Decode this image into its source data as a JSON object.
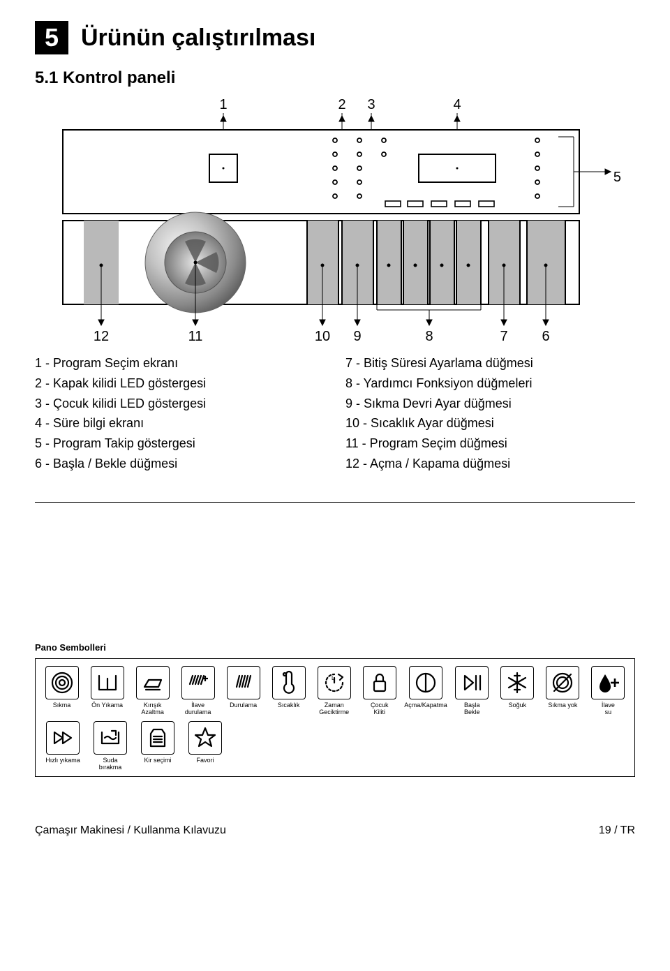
{
  "chapter": {
    "num": "5",
    "title": "Ürünün çalıştırılması"
  },
  "section": {
    "title": "5.1 Kontrol paneli"
  },
  "callouts": {
    "top": [
      "1",
      "2",
      "3",
      "4",
      "5"
    ],
    "bottom": [
      "12",
      "11",
      "10",
      "9",
      "8",
      "7",
      "6"
    ]
  },
  "legend": {
    "left": [
      "1 - Program Seçim ekranı",
      "2 - Kapak kilidi LED göstergesi",
      "3 - Çocuk kilidi LED göstergesi",
      "4 - Süre bilgi ekranı",
      "5 - Program Takip göstergesi",
      "6 - Başla / Bekle düğmesi"
    ],
    "right": [
      "7 - Bitiş Süresi Ayarlama düğmesi",
      "8 - Yardımcı Fonksiyon düğmeleri",
      "9 - Sıkma Devri Ayar düğmesi",
      "10 - Sıcaklık Ayar düğmesi",
      "11 - Program Seçim düğmesi",
      "12 - Açma / Kapama düğmesi"
    ]
  },
  "symbols": {
    "title": "Pano Sembolleri",
    "row1": [
      {
        "id": "spin-icon",
        "label": "Sıkma"
      },
      {
        "id": "prewash-icon",
        "label": "Ön Yıkama"
      },
      {
        "id": "anticrease-icon",
        "label": "Kırışık\nAzaltma"
      },
      {
        "id": "extra-rinse-icon",
        "label": "İlave\ndurulama"
      },
      {
        "id": "rinse-icon",
        "label": "Durulama"
      },
      {
        "id": "temperature-icon",
        "label": "Sıcaklık"
      },
      {
        "id": "time-delay-icon",
        "label": "Zaman\nGeciktirme"
      },
      {
        "id": "child-lock-icon",
        "label": "Çocuk\nKiliti"
      },
      {
        "id": "power-icon",
        "label": "Açma/Kapatma"
      },
      {
        "id": "start-pause-icon",
        "label": "Başla\nBekle"
      },
      {
        "id": "cold-icon",
        "label": "Soğuk"
      },
      {
        "id": "no-spin-icon",
        "label": "Sıkma yok"
      },
      {
        "id": "extra-water-icon",
        "label": "İlave\nsu"
      }
    ],
    "row2": [
      {
        "id": "fast-wash-icon",
        "label": "Hızlı yıkama"
      },
      {
        "id": "rinse-hold-icon",
        "label": "Suda\nbırakma"
      },
      {
        "id": "soil-level-icon",
        "label": "Kir seçimi"
      },
      {
        "id": "favorite-icon",
        "label": "Favori"
      }
    ]
  },
  "footer": {
    "left": "Çamaşır Makinesi / Kullanma Kılavuzu",
    "right": "19 / TR"
  },
  "colors": {
    "text": "#000000",
    "bg": "#ffffff",
    "panel_border": "#000000",
    "panel_fill": "#b9b9b9",
    "dial_outer": "#9a9a9a",
    "dial_light": "#e8e8e8",
    "dial_shadow": "#5c5c5c"
  }
}
